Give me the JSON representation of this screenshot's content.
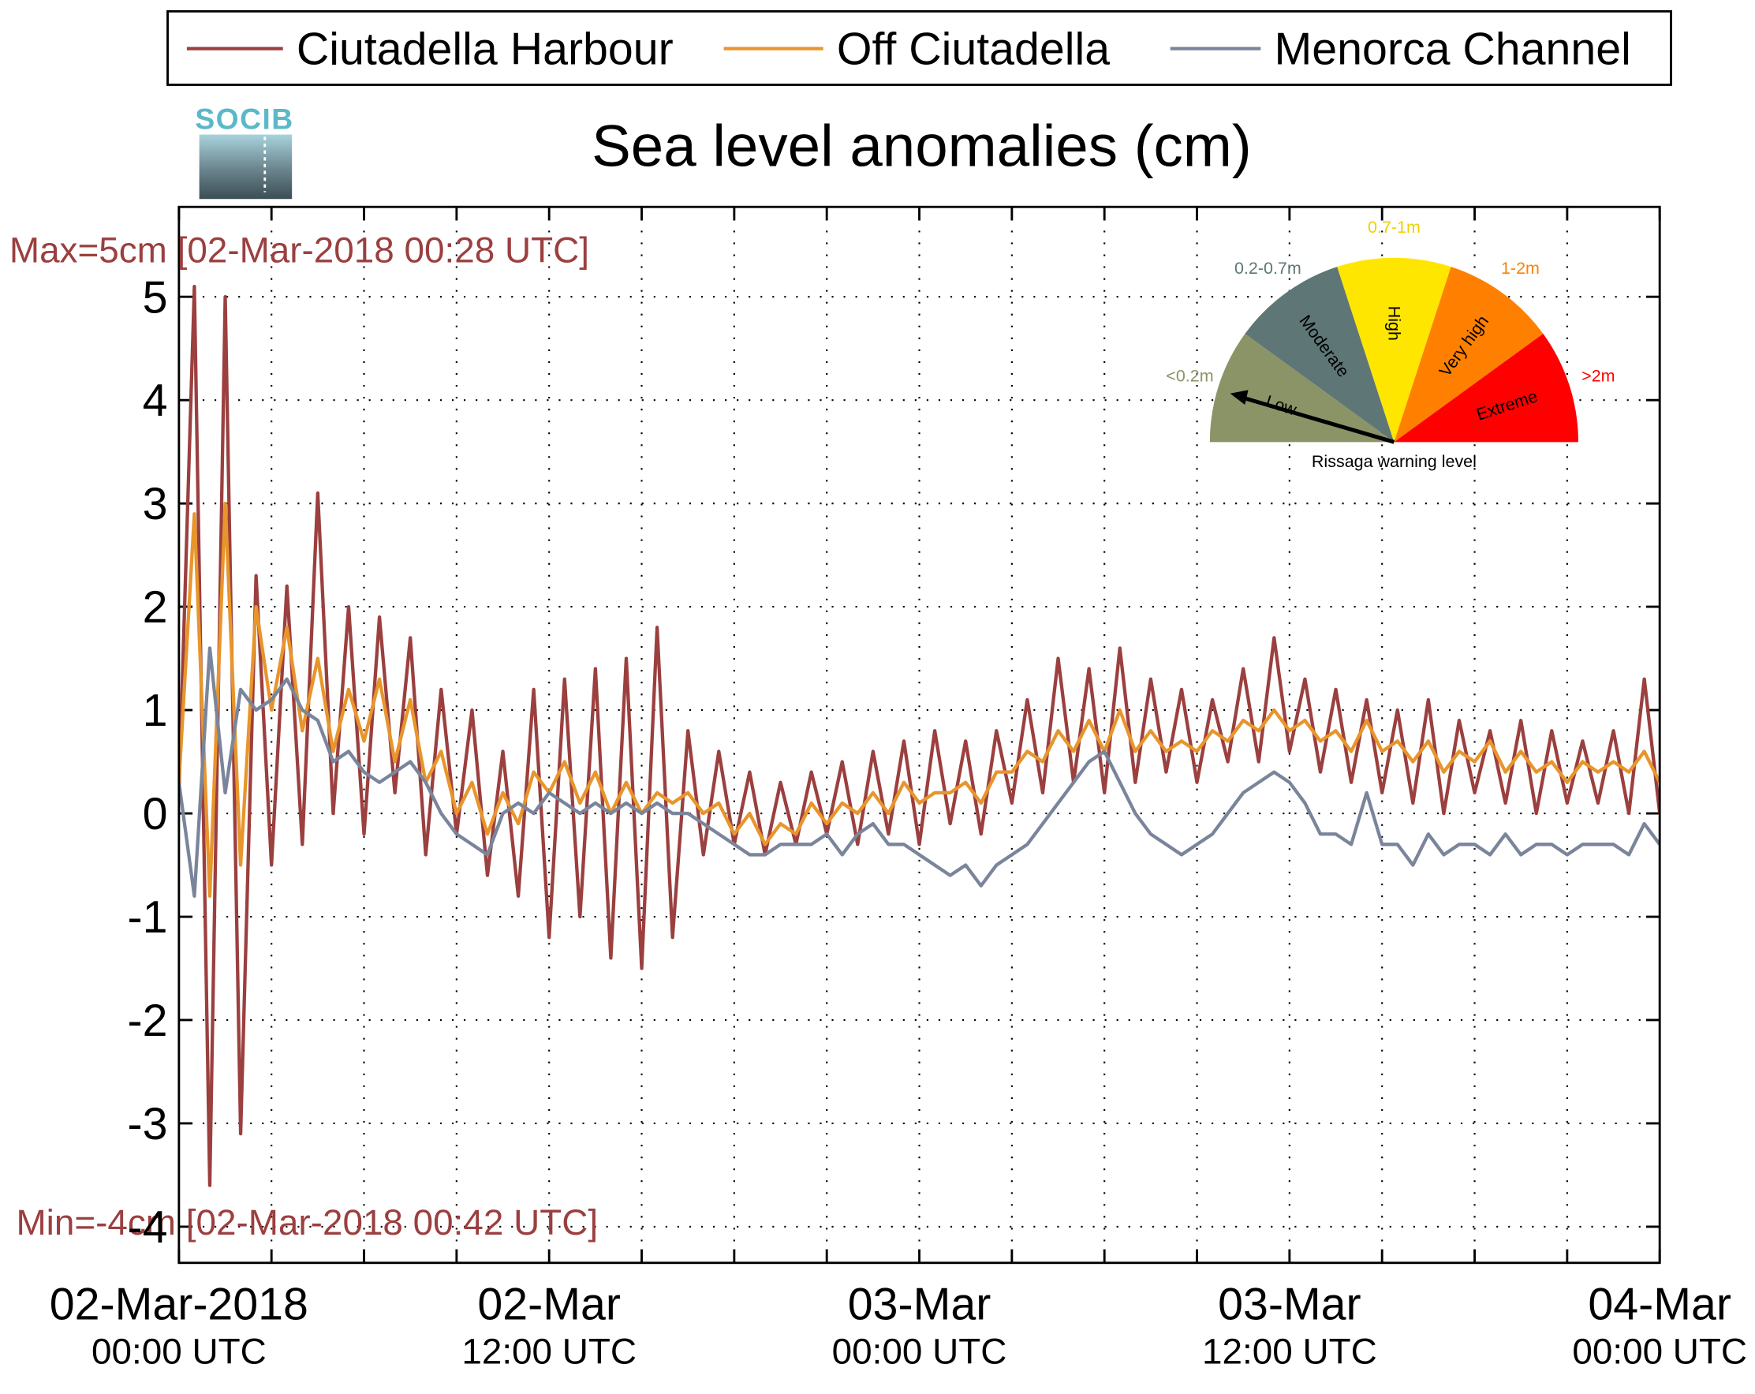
{
  "chart_data": {
    "type": "line",
    "title": "Sea level anomalies (cm)",
    "logo": "SOCIB",
    "annotations": [
      "Max=5cm [02-Mar-2018 00:28 UTC]",
      "Min=-4cm [02-Mar-2018 00:42 UTC]"
    ],
    "x": [
      0,
      0.5,
      1,
      1.5,
      2,
      2.5,
      3,
      3.5,
      4,
      4.5,
      5,
      5.5,
      6,
      6.5,
      7,
      7.5,
      8,
      8.5,
      9,
      9.5,
      10,
      10.5,
      11,
      11.5,
      12,
      12.5,
      13,
      13.5,
      14,
      14.5,
      15,
      15.5,
      16,
      16.5,
      17,
      17.5,
      18,
      18.5,
      19,
      19.5,
      20,
      20.5,
      21,
      21.5,
      22,
      22.5,
      23,
      23.5,
      24,
      24.5,
      25,
      25.5,
      26,
      26.5,
      27,
      27.5,
      28,
      28.5,
      29,
      29.5,
      30,
      30.5,
      31,
      31.5,
      32,
      32.5,
      33,
      33.5,
      34,
      34.5,
      35,
      35.5,
      36,
      36.5,
      37,
      37.5,
      38,
      38.5,
      39,
      39.5,
      40,
      40.5,
      41,
      41.5,
      42,
      42.5,
      43,
      43.5,
      44,
      44.5,
      45,
      45.5,
      46,
      46.5,
      47,
      47.5,
      48
    ],
    "series": [
      {
        "name": "Ciutadella Harbour",
        "color": "#9b3f3f",
        "values": [
          0.2,
          5.1,
          -3.6,
          5.0,
          -3.1,
          2.3,
          -0.5,
          2.2,
          -0.3,
          3.1,
          0.0,
          2.0,
          -0.2,
          1.9,
          0.2,
          1.7,
          -0.4,
          1.2,
          -0.2,
          1.0,
          -0.6,
          0.6,
          -0.8,
          1.2,
          -1.2,
          1.3,
          -1.0,
          1.4,
          -1.4,
          1.5,
          -1.5,
          1.8,
          -1.2,
          0.8,
          -0.4,
          0.6,
          -0.3,
          0.4,
          -0.4,
          0.3,
          -0.3,
          0.4,
          -0.2,
          0.5,
          -0.3,
          0.6,
          -0.2,
          0.7,
          -0.3,
          0.8,
          -0.1,
          0.7,
          -0.2,
          0.8,
          0.1,
          1.1,
          0.2,
          1.5,
          0.3,
          1.4,
          0.2,
          1.6,
          0.3,
          1.3,
          0.4,
          1.2,
          0.3,
          1.1,
          0.5,
          1.4,
          0.5,
          1.7,
          0.6,
          1.3,
          0.4,
          1.2,
          0.3,
          1.1,
          0.2,
          1.0,
          0.1,
          1.1,
          0.0,
          0.9,
          0.2,
          0.8,
          0.1,
          0.9,
          0.0,
          0.8,
          0.1,
          0.7,
          0.1,
          0.8,
          0.0,
          1.3,
          0.0
        ]
      },
      {
        "name": "Off Ciutadella",
        "color": "#e8952c",
        "values": [
          0.3,
          2.9,
          -0.8,
          3.0,
          -0.5,
          2.0,
          1.0,
          1.8,
          0.8,
          1.5,
          0.6,
          1.2,
          0.7,
          1.3,
          0.5,
          1.1,
          0.3,
          0.6,
          0.0,
          0.3,
          -0.2,
          0.2,
          -0.1,
          0.4,
          0.2,
          0.5,
          0.1,
          0.4,
          0.0,
          0.3,
          0.0,
          0.2,
          0.1,
          0.2,
          0.0,
          0.1,
          -0.2,
          0.0,
          -0.3,
          -0.1,
          -0.2,
          0.1,
          -0.1,
          0.1,
          0.0,
          0.2,
          0.0,
          0.3,
          0.1,
          0.2,
          0.2,
          0.3,
          0.1,
          0.4,
          0.4,
          0.6,
          0.5,
          0.8,
          0.6,
          0.9,
          0.6,
          1.0,
          0.6,
          0.8,
          0.6,
          0.7,
          0.6,
          0.8,
          0.7,
          0.9,
          0.8,
          1.0,
          0.8,
          0.9,
          0.7,
          0.8,
          0.6,
          0.9,
          0.6,
          0.7,
          0.5,
          0.7,
          0.4,
          0.6,
          0.5,
          0.7,
          0.4,
          0.6,
          0.4,
          0.5,
          0.3,
          0.5,
          0.4,
          0.5,
          0.4,
          0.6,
          0.3
        ]
      },
      {
        "name": "Menorca Channel",
        "color": "#7a859c",
        "values": [
          0.3,
          -0.8,
          1.6,
          0.2,
          1.2,
          1.0,
          1.1,
          1.3,
          1.0,
          0.9,
          0.5,
          0.6,
          0.4,
          0.3,
          0.4,
          0.5,
          0.3,
          0.0,
          -0.2,
          -0.3,
          -0.4,
          0.0,
          0.1,
          0.0,
          0.2,
          0.1,
          0.0,
          0.1,
          0.0,
          0.1,
          0.0,
          0.1,
          0.0,
          0.0,
          -0.1,
          -0.2,
          -0.3,
          -0.4,
          -0.4,
          -0.3,
          -0.3,
          -0.3,
          -0.2,
          -0.4,
          -0.2,
          -0.1,
          -0.3,
          -0.3,
          -0.4,
          -0.5,
          -0.6,
          -0.5,
          -0.7,
          -0.5,
          -0.4,
          -0.3,
          -0.1,
          0.1,
          0.3,
          0.5,
          0.6,
          0.3,
          0.0,
          -0.2,
          -0.3,
          -0.4,
          -0.3,
          -0.2,
          0.0,
          0.2,
          0.3,
          0.4,
          0.3,
          0.1,
          -0.2,
          -0.2,
          -0.3,
          0.2,
          -0.3,
          -0.3,
          -0.5,
          -0.2,
          -0.4,
          -0.3,
          -0.3,
          -0.4,
          -0.2,
          -0.4,
          -0.3,
          -0.3,
          -0.4,
          -0.3,
          -0.3,
          -0.3,
          -0.4,
          -0.1,
          -0.3
        ]
      }
    ],
    "xlim": [
      0,
      48
    ],
    "xticks": [
      {
        "value": 0,
        "label": "02-Mar-2018",
        "sublabel": "00:00 UTC"
      },
      {
        "value": 12,
        "label": "02-Mar",
        "sublabel": "12:00 UTC"
      },
      {
        "value": 24,
        "label": "03-Mar",
        "sublabel": "00:00 UTC"
      },
      {
        "value": 36,
        "label": "03-Mar",
        "sublabel": "12:00 UTC"
      },
      {
        "value": 48,
        "label": "04-Mar",
        "sublabel": "00:00 UTC"
      }
    ],
    "xminor_ticks": [
      3,
      6,
      9,
      15,
      18,
      21,
      27,
      30,
      33,
      39,
      42,
      45
    ],
    "ylim": [
      -4.35,
      5.87
    ],
    "yticks": [
      -4,
      -3,
      -2,
      -1,
      0,
      1,
      2,
      3,
      4,
      5
    ],
    "grid": true,
    "legend": "top",
    "gauge": {
      "title": "Rissaga warning level",
      "levels": [
        {
          "name": "Low",
          "range": "<0.2m",
          "color": "#8b9467",
          "label_color": "#8b9467"
        },
        {
          "name": "Moderate",
          "range": "0.2-0.7m",
          "color": "#5e7676",
          "label_color": "#5e7676"
        },
        {
          "name": "High",
          "range": "0.7-1m",
          "color": "#ffe600",
          "label_color": "#f0d000"
        },
        {
          "name": "Very high",
          "range": "1-2m",
          "color": "#ff8000",
          "label_color": "#ff8000"
        },
        {
          "name": "Extreme",
          "range": ">2m",
          "color": "#ff0000",
          "label_color": "#ff0000"
        }
      ]
    }
  }
}
